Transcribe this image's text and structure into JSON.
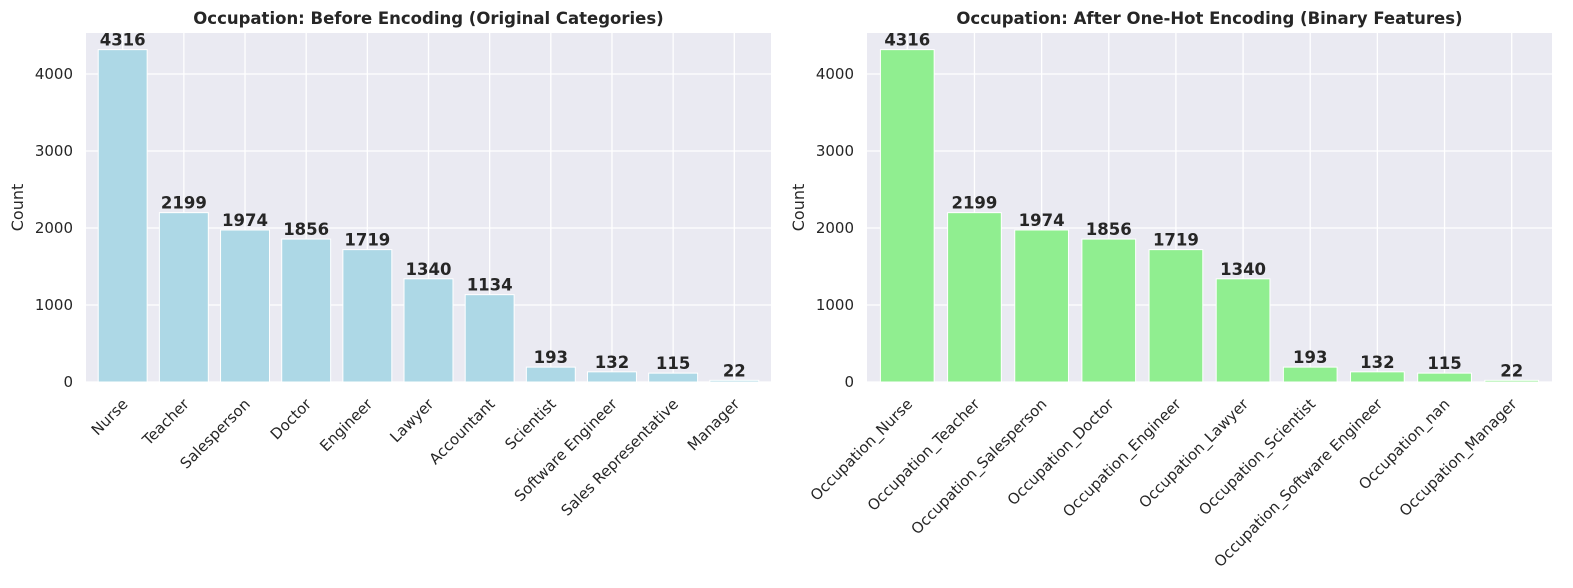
{
  "chart_data": [
    {
      "type": "bar",
      "title": "Occupation: Before Encoding (Original Categories)",
      "xlabel": "",
      "ylabel": "Count",
      "categories": [
        "Nurse",
        "Teacher",
        "Salesperson",
        "Doctor",
        "Engineer",
        "Lawyer",
        "Accountant",
        "Scientist",
        "Software Engineer",
        "Sales Representative",
        "Manager"
      ],
      "values": [
        4316,
        2199,
        1974,
        1856,
        1719,
        1340,
        1134,
        193,
        132,
        115,
        22
      ],
      "ylim": [
        0,
        4532
      ],
      "yticks": [
        0,
        1000,
        2000,
        3000,
        4000
      ],
      "grid": true,
      "color": "#add8e6"
    },
    {
      "type": "bar",
      "title": "Occupation: After One-Hot Encoding (Binary Features)",
      "xlabel": "",
      "ylabel": "Count",
      "categories": [
        "Occupation_Nurse",
        "Occupation_Teacher",
        "Occupation_Salesperson",
        "Occupation_Doctor",
        "Occupation_Engineer",
        "Occupation_Lawyer",
        "Occupation_Scientist",
        "Occupation_Software Engineer",
        "Occupation_nan",
        "Occupation_Manager"
      ],
      "values": [
        4316,
        2199,
        1974,
        1856,
        1719,
        1340,
        193,
        132,
        115,
        22
      ],
      "ylim": [
        0,
        4532
      ],
      "yticks": [
        0,
        1000,
        2000,
        3000,
        4000
      ],
      "grid": true,
      "color": "#90ee90"
    }
  ]
}
